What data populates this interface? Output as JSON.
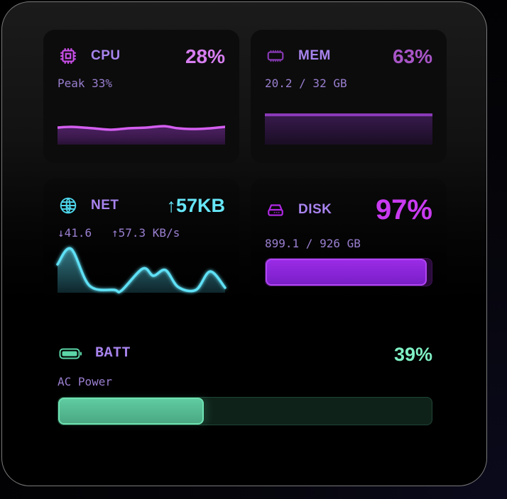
{
  "widgets": {
    "cpu": {
      "label": "CPU",
      "icon": "cpu-chip-icon",
      "value": "28%",
      "sub": "Peak 33%",
      "color": "#d77ef0",
      "icon_color": "#c94ee8",
      "chart_points": [
        [
          0,
          8
        ],
        [
          20,
          7
        ],
        [
          50,
          9
        ],
        [
          75,
          11
        ],
        [
          100,
          9
        ],
        [
          125,
          8
        ],
        [
          150,
          6
        ],
        [
          170,
          9
        ],
        [
          195,
          10
        ],
        [
          215,
          9
        ],
        [
          236,
          7
        ]
      ]
    },
    "mem": {
      "label": "MEM",
      "icon": "memory-module-icon",
      "value": "63%",
      "sub": "20.2 / 32 GB",
      "color": "#a855c7",
      "icon_color": "#8a3ab8",
      "percent": 63
    },
    "net": {
      "label": "NET",
      "icon": "globe-icon",
      "value": "↑57KB",
      "sub_down": "↓41.6",
      "sub_up": "↑57.3 KB/s",
      "color": "#66e6f7",
      "icon_color": "#4dd6ec",
      "chart_points": [
        [
          0,
          30
        ],
        [
          19,
          8
        ],
        [
          45,
          60
        ],
        [
          80,
          66
        ],
        [
          90,
          67
        ],
        [
          120,
          36
        ],
        [
          135,
          46
        ],
        [
          152,
          38
        ],
        [
          170,
          62
        ],
        [
          195,
          66
        ],
        [
          215,
          40
        ],
        [
          236,
          63
        ]
      ]
    },
    "disk": {
      "label": "DISK",
      "icon": "hard-drive-icon",
      "value": "97%",
      "sub": "899.1 / 926 GB",
      "color": "#c93af0",
      "icon_color": "#b228e6",
      "percent": 97
    },
    "batt": {
      "label": "BATT",
      "icon": "battery-icon",
      "value": "39%",
      "sub": "AC Power",
      "color": "#7ff0c4",
      "icon_color": "#5cd6a8",
      "percent": 39
    }
  }
}
